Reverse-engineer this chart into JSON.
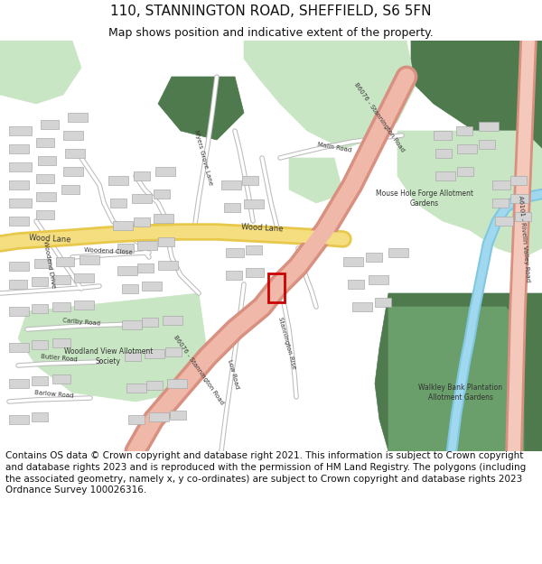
{
  "title_line1": "110, STANNINGTON ROAD, SHEFFIELD, S6 5FN",
  "title_line2": "Map shows position and indicative extent of the property.",
  "footer": "Contains OS data © Crown copyright and database right 2021. This information is subject to Crown copyright and database rights 2023 and is reproduced with the permission of HM Land Registry. The polygons (including the associated geometry, namely x, y co-ordinates) are subject to Crown copyright and database rights 2023 Ordnance Survey 100026316.",
  "bg_color": "#ffffff",
  "map_bg": "#f0ede6",
  "green_light": "#c9e6c4",
  "green_dark": "#6a9e6a",
  "green_darker": "#4e7a4e",
  "road_yellow_outer": "#e8c84a",
  "road_yellow_inner": "#f5de80",
  "road_b6076_outer": "#d89080",
  "road_b6076_inner": "#f0b8a8",
  "road_a6101_outer": "#d89080",
  "road_a6101_inner": "#f5c8bc",
  "road_white_outer": "#bbbbbb",
  "road_white_inner": "#ffffff",
  "river_blue": "#80c8e0",
  "building_gray": "#d4d4d4",
  "building_outline": "#aaaaaa",
  "red_box": "#cc0000",
  "title_fontsize": 11,
  "subtitle_fontsize": 9,
  "footer_fontsize": 7.5
}
